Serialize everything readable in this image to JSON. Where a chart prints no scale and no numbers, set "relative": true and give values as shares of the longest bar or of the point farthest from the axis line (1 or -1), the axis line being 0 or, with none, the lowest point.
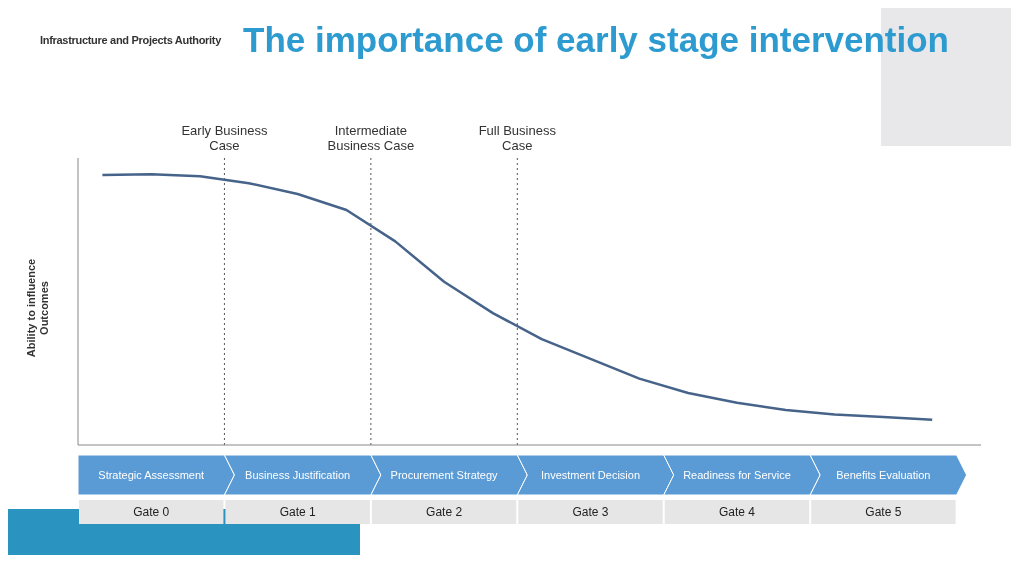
{
  "chart_data": {
    "type": "line",
    "title": "The importance of early stage intervention",
    "subtitle": "Infrastructure and Projects Authority",
    "ylabel": "Ability to influence Outcomes",
    "relative": true,
    "categories": [
      null,
      "Strategic Assessment",
      null,
      null,
      "Business Justification",
      null,
      null,
      "Procurement Strategy",
      null,
      null,
      "Investment Decision",
      null,
      null,
      "Readiness for Service",
      null,
      null,
      "Benefits Evaluation",
      null
    ],
    "series": [
      {
        "color": "#46638a",
        "values": [
          0.997,
          1,
          0.993,
          0.967,
          0.927,
          0.868,
          0.752,
          0.603,
          0.487,
          0.391,
          0.318,
          0.245,
          0.192,
          0.156,
          0.129,
          0.113,
          0.103,
          0.093
        ]
      }
    ],
    "annotations": [
      "Gate 0",
      "Gate 1",
      "Gate 2",
      "Gate 3",
      "Gate 4",
      "Gate 5",
      "Early Business Case",
      "Intermediate Business Case",
      "Full Business Case"
    ]
  }
}
